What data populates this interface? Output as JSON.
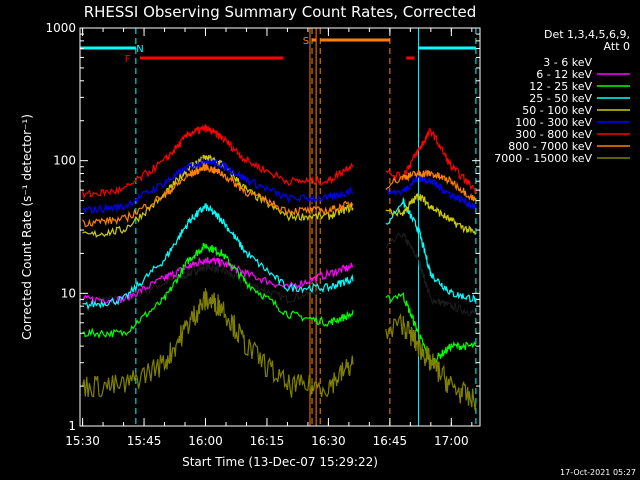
{
  "chart_data": {
    "type": "line",
    "title": "RHESSI Observing Summary Count Rates, Corrected",
    "xlabel": "Start Time (13-Dec-07 15:29:22)",
    "ylabel": "Corrected Count Rate (s⁻¹ detector⁻¹)",
    "y_scale": "log",
    "ylim": [
      1,
      1000
    ],
    "xlim": [
      "15:29:22",
      "17:07:00"
    ],
    "x_ticks": [
      "15:30",
      "15:45",
      "16:00",
      "16:15",
      "16:30",
      "16:45",
      "17:00"
    ],
    "y_ticks": [
      "1",
      "10",
      "100",
      "1000"
    ],
    "legend_header": "Det 1,3,4,5,6,9,",
    "legend_subheader": "Att 0",
    "series": [
      {
        "name": "3 - 6 keV",
        "color": "#000000",
        "x": [
          "15:30",
          "15:40",
          "15:50",
          "15:56",
          "16:00",
          "16:04",
          "16:10",
          "16:20",
          "16:30",
          "16:36",
          "16:48",
          "16:52",
          "16:55",
          "17:00",
          "17:06"
        ],
        "y": [
          9,
          9,
          12,
          14,
          16,
          15,
          12,
          9,
          11,
          13,
          28,
          18,
          9,
          8,
          7
        ]
      },
      {
        "name": "6 - 12 keV",
        "color": "#ff00ff",
        "x": [
          "15:30",
          "15:40",
          "15:50",
          "15:56",
          "16:00",
          "16:04",
          "16:10",
          "16:20",
          "16:30",
          "16:36"
        ],
        "y": [
          9,
          9,
          13,
          16,
          18,
          17,
          14,
          11,
          14,
          16
        ]
      },
      {
        "name": "12 - 25 keV",
        "color": "#00ff00",
        "x": [
          "15:30",
          "15:40",
          "15:50",
          "15:56",
          "16:00",
          "16:04",
          "16:10",
          "16:20",
          "16:30",
          "16:36",
          "16:48",
          "16:52",
          "16:55",
          "17:00",
          "17:06"
        ],
        "y": [
          5,
          5,
          9,
          18,
          23,
          20,
          12,
          7,
          6,
          7,
          10,
          5,
          3,
          4,
          4
        ]
      },
      {
        "name": "25 - 50 keV",
        "color": "#00ffff",
        "x": [
          "15:30",
          "15:40",
          "15:50",
          "15:56",
          "16:00",
          "16:04",
          "16:10",
          "16:20",
          "16:30",
          "16:36",
          "16:48",
          "16:52",
          "16:55",
          "17:00",
          "17:06"
        ],
        "y": [
          8,
          9,
          18,
          35,
          45,
          36,
          20,
          11,
          11,
          13,
          50,
          30,
          14,
          10,
          9
        ]
      },
      {
        "name": "50 - 100 keV",
        "color": "#cccc00",
        "x": [
          "15:30",
          "15:40",
          "15:50",
          "15:56",
          "16:00",
          "16:04",
          "16:10",
          "16:20",
          "16:30",
          "16:36",
          "16:48",
          "16:52",
          "16:55",
          "17:00",
          "17:06"
        ],
        "y": [
          27,
          30,
          55,
          90,
          105,
          95,
          60,
          38,
          38,
          45,
          40,
          55,
          45,
          35,
          28
        ]
      },
      {
        "name": "100 - 300 keV",
        "color": "#0000ff",
        "x": [
          "15:30",
          "15:40",
          "15:50",
          "15:56",
          "16:00",
          "16:04",
          "16:10",
          "16:20",
          "16:30",
          "16:36",
          "16:48",
          "16:52",
          "16:55",
          "17:00",
          "17:06"
        ],
        "y": [
          42,
          45,
          68,
          90,
          100,
          93,
          72,
          52,
          52,
          60,
          58,
          75,
          70,
          55,
          45
        ]
      },
      {
        "name": "300 - 800 keV",
        "color": "#ff0000",
        "x": [
          "15:30",
          "15:40",
          "15:50",
          "15:56",
          "16:00",
          "16:04",
          "16:10",
          "16:20",
          "16:30",
          "16:36",
          "16:48",
          "16:52",
          "16:55",
          "17:00",
          "17:06"
        ],
        "y": [
          55,
          60,
          100,
          160,
          175,
          150,
          100,
          70,
          70,
          95,
          75,
          120,
          170,
          90,
          60
        ]
      },
      {
        "name": "800 - 7000 keV",
        "color": "#ff8000",
        "x": [
          "15:30",
          "15:40",
          "15:50",
          "15:56",
          "16:00",
          "16:04",
          "16:10",
          "16:20",
          "16:30",
          "16:36",
          "16:48",
          "16:52",
          "16:55",
          "17:00",
          "17:06"
        ],
        "y": [
          34,
          36,
          55,
          78,
          90,
          80,
          58,
          42,
          42,
          48,
          75,
          80,
          80,
          70,
          50
        ]
      },
      {
        "name": "7000 - 15000 keV",
        "color": "#808000",
        "x": [
          "15:30",
          "15:40",
          "15:50",
          "15:56",
          "16:00",
          "16:04",
          "16:10",
          "16:20",
          "16:30",
          "16:36",
          "16:48",
          "16:52",
          "16:55",
          "17:00",
          "17:06"
        ],
        "y": [
          2,
          2,
          3,
          6,
          9,
          8,
          4,
          2,
          2,
          3,
          6,
          4,
          3,
          2,
          1.5
        ]
      }
    ],
    "annotations": [
      {
        "text": "N",
        "color": "#00ffff"
      },
      {
        "text": "F",
        "color": "#ff0000"
      },
      {
        "text": "S",
        "color": "#ff8000"
      }
    ],
    "bars": [
      {
        "label": "N",
        "color": "#00ffff",
        "ranges": [
          [
            "15:29:22",
            "15:43:00"
          ],
          [
            "16:52:00",
            "17:06:00"
          ]
        ]
      },
      {
        "label": "F",
        "color": "#ff0000",
        "ranges": [
          [
            "15:44:00",
            "16:19:00"
          ],
          [
            "16:49:00",
            "16:51:00"
          ]
        ]
      },
      {
        "label": "S",
        "color": "#ff8000",
        "ranges": [
          [
            "16:26:00",
            "16:27:00"
          ],
          [
            "16:28:00",
            "16:45:00"
          ]
        ]
      }
    ],
    "vlines": [
      {
        "t": "15:43:00",
        "color": "#00ffff",
        "style": "dashed"
      },
      {
        "t": "16:52:00",
        "color": "#00ffff",
        "style": "solid"
      },
      {
        "t": "17:06:00",
        "color": "#00ffff",
        "style": "dashed"
      },
      {
        "t": "16:25:30",
        "color": "#ff8000",
        "style": "solid"
      },
      {
        "t": "16:26:00",
        "color": "#ff8000",
        "style": "dashed"
      },
      {
        "t": "16:27:00",
        "color": "#ff8000",
        "style": "solid"
      },
      {
        "t": "16:28:00",
        "color": "#ff8000",
        "style": "dashed"
      },
      {
        "t": "16:45:00",
        "color": "#ff8000",
        "style": "dashed"
      }
    ],
    "data_gap": [
      "16:36",
      "16:44"
    ]
  },
  "footer": {
    "timestamp": "17-Oct-2021 05:27"
  }
}
